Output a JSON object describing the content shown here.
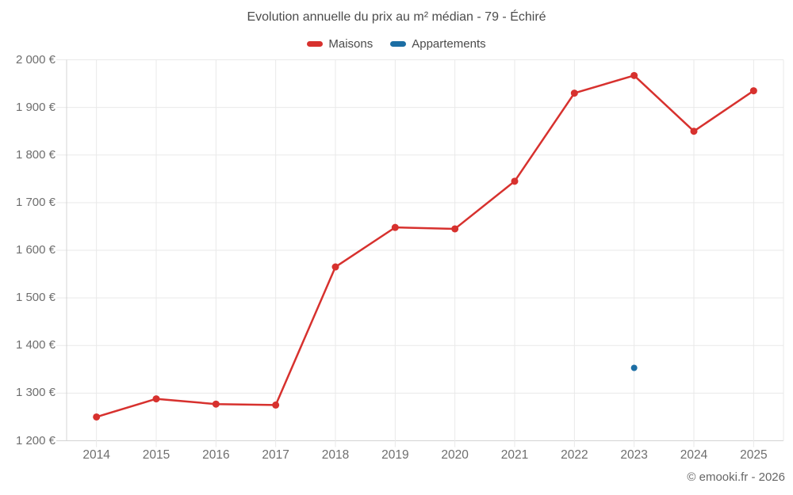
{
  "title": "Evolution annuelle du prix au m² médian - 79 - Échiré",
  "credit": "© emooki.fr - 2026",
  "legend": {
    "items": [
      {
        "label": "Maisons",
        "color": "#d7312e"
      },
      {
        "label": "Appartements",
        "color": "#1c6ea4"
      }
    ]
  },
  "chart_data": {
    "type": "line",
    "title": "Evolution annuelle du prix au m² médian - 79 - Échiré",
    "categories": [
      "2014",
      "2015",
      "2016",
      "2017",
      "2018",
      "2019",
      "2020",
      "2021",
      "2022",
      "2023",
      "2024",
      "2025"
    ],
    "series": [
      {
        "name": "Maisons",
        "color": "#d7312e",
        "marker_radius": 4.5,
        "line_width": 2.5,
        "values": [
          1250,
          1288,
          1277,
          1275,
          1565,
          1648,
          1645,
          1745,
          1930,
          1967,
          1850,
          1935
        ]
      },
      {
        "name": "Appartements",
        "color": "#1c6ea4",
        "marker_radius": 4,
        "line_width": 2.5,
        "values": [
          null,
          null,
          null,
          null,
          null,
          null,
          null,
          null,
          null,
          1353,
          null,
          null
        ]
      }
    ],
    "xlabel": "",
    "ylabel": "",
    "ylim": [
      1200,
      2000
    ],
    "yticks": {
      "values": [
        1200,
        1300,
        1400,
        1500,
        1600,
        1700,
        1800,
        1900,
        2000
      ],
      "labels": [
        "1 200 €",
        "1 300 €",
        "1 400 €",
        "1 500 €",
        "1 600 €",
        "1 700 €",
        "1 800 €",
        "1 900 €",
        "2 000 €"
      ]
    },
    "legend_position": "top",
    "grid": true,
    "unit": "€"
  }
}
